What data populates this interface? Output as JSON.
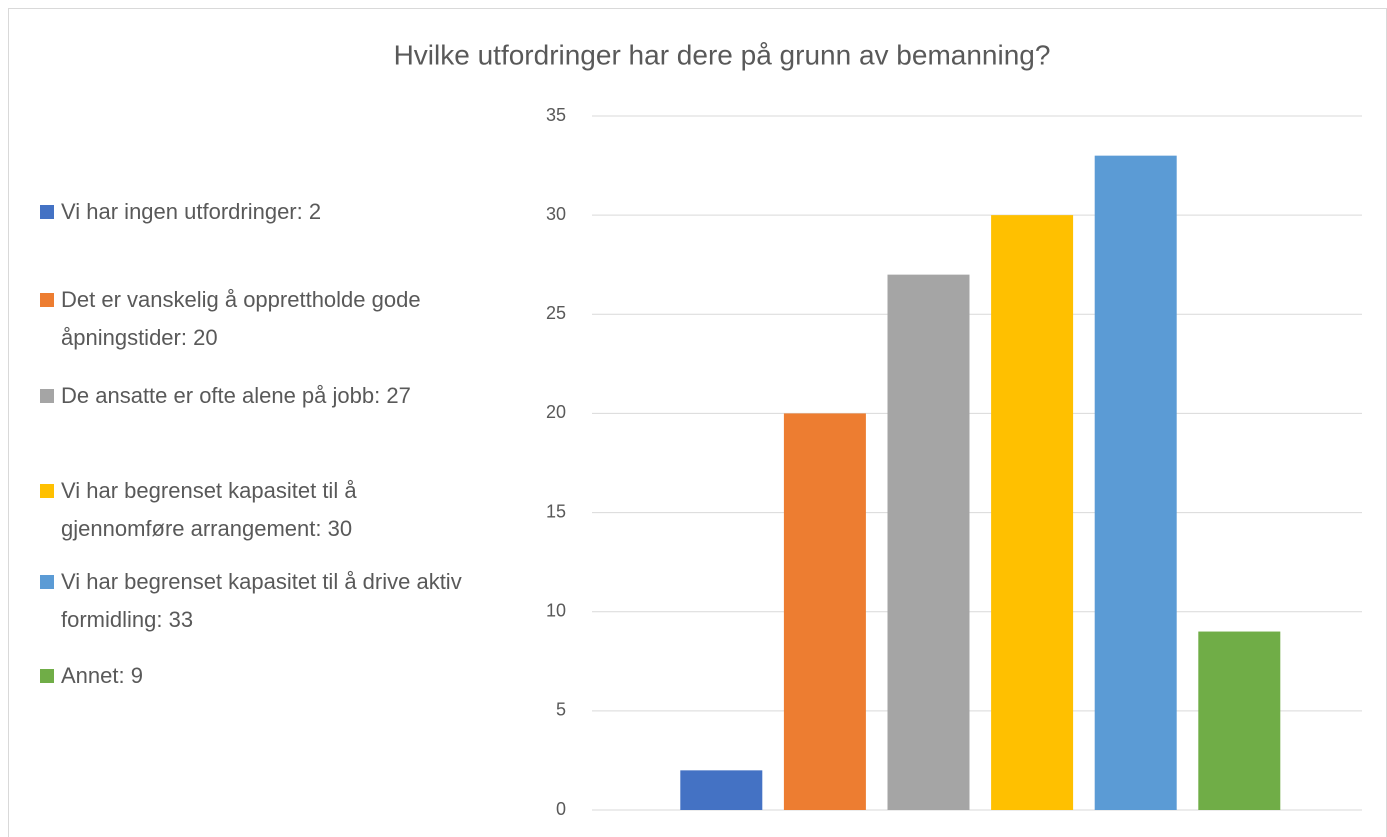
{
  "chart_data": {
    "type": "bar",
    "title": "Hvilke utfordringer har dere på grunn av bemanning?",
    "categories": [
      "Vi har ingen utfordringer: 2",
      "Det er vanskelig å opprettholde gode åpningstider: 20",
      "De ansatte er ofte alene på jobb: 27",
      "Vi har begrenset kapasitet til å gjennomføre arrangement: 30",
      "Vi har begrenset kapasitet til å drive aktiv formidling: 33",
      "Annet: 9"
    ],
    "values": [
      2,
      20,
      27,
      30,
      33,
      9
    ],
    "colors": [
      "#4472c4",
      "#ed7d31",
      "#a5a5a5",
      "#ffc000",
      "#5b9bd5",
      "#70ad47"
    ],
    "ylim": [
      0,
      35
    ],
    "yticks": [
      0,
      5,
      10,
      15,
      20,
      25,
      30,
      35
    ],
    "grid": true,
    "legend": "left"
  }
}
